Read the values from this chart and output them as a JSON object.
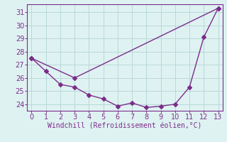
{
  "xlabel": "Windchill (Refroidissement éolien,°C)",
  "line1_x": [
    0,
    1,
    2,
    3,
    4,
    5,
    6,
    7,
    8,
    9,
    10,
    11,
    12,
    13
  ],
  "line1_y": [
    27.5,
    26.5,
    25.5,
    25.3,
    24.7,
    24.4,
    23.85,
    24.1,
    23.75,
    23.85,
    24.0,
    25.3,
    29.1,
    31.3
  ],
  "line2_x": [
    0,
    3,
    13
  ],
  "line2_y": [
    27.5,
    26.0,
    31.3
  ],
  "line_color": "#7b2d8b",
  "bg_color": "#dff2f2",
  "grid_color": "#b8d8d8",
  "xlim": [
    -0.3,
    13.3
  ],
  "ylim": [
    23.5,
    31.6
  ],
  "yticks": [
    24,
    25,
    26,
    27,
    28,
    29,
    30,
    31
  ],
  "xticks": [
    0,
    1,
    2,
    3,
    4,
    5,
    6,
    7,
    8,
    9,
    10,
    11,
    12,
    13
  ],
  "tick_fontsize": 7,
  "xlabel_fontsize": 7,
  "marker_size": 3,
  "line_width": 1.0
}
